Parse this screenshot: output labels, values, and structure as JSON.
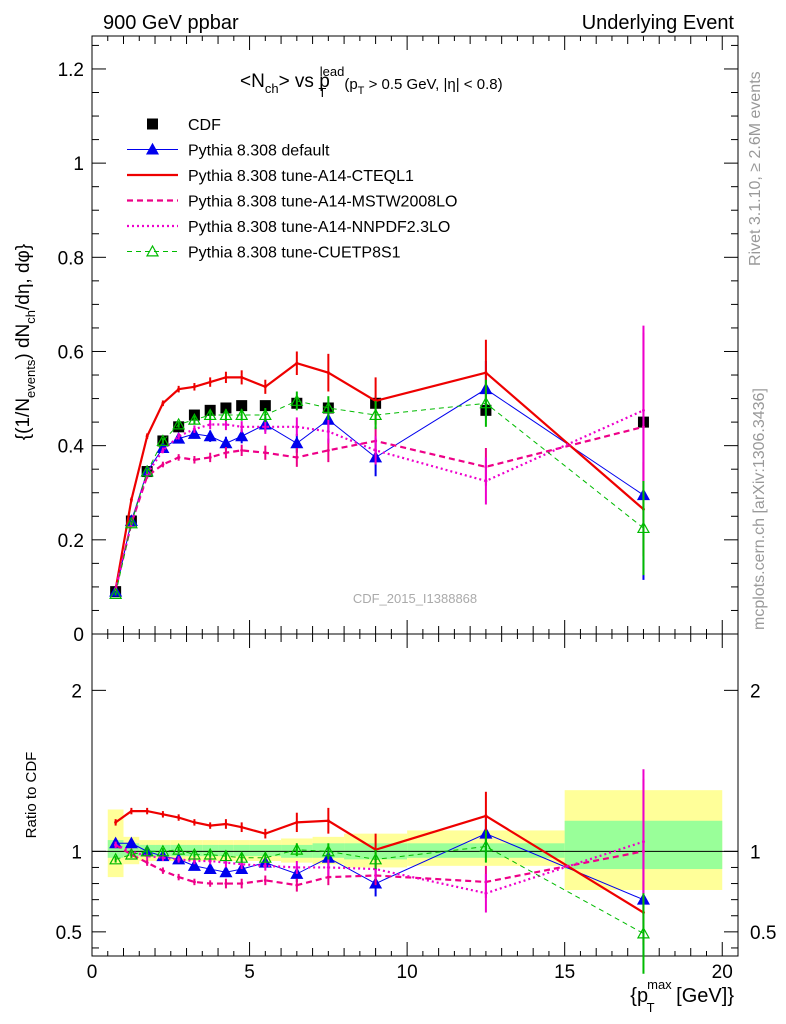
{
  "header": {
    "left": "900 GeV ppbar",
    "right": "Underlying Event"
  },
  "side_labels": {
    "rivet": "Rivet 3.1.10, ≥ 2.6M events",
    "mcplots": "mcplots.cern.ch [arXiv:1306.3436]"
  },
  "watermark": "CDF_2015_I1388868",
  "colors": {
    "cdf": "#000000",
    "default": "#0000ee",
    "cteql1": "#ee0000",
    "mstw": "#ee0088",
    "nnpdf": "#ee00cc",
    "cuetp": "#00bb00",
    "band_inner": "#99ff99",
    "band_outer": "#ffff99"
  },
  "chart_data": [
    {
      "type": "scatter",
      "panel": "main",
      "title": "<N_ch> vs p_T^lead (p_T > 0.5 GeV, |η| < 0.8)",
      "ylabel": "{(1/N_events) dN_ch/dη, dφ}",
      "ylim": [
        0,
        1.27
      ],
      "yticks": [
        "0",
        "0.2",
        "0.4",
        "0.6",
        "0.8",
        "1",
        "1.2"
      ],
      "xlim": [
        0,
        20.5
      ],
      "legend_position": "top-left",
      "x": [
        0.75,
        1.25,
        1.75,
        2.25,
        2.75,
        3.25,
        3.75,
        4.25,
        4.75,
        5.5,
        6.5,
        7.5,
        9.0,
        12.5,
        17.5
      ],
      "series": [
        {
          "name": "CDF",
          "style": "data",
          "values": [
            0.09,
            0.24,
            0.345,
            0.41,
            0.44,
            0.465,
            0.475,
            0.48,
            0.485,
            0.485,
            0.49,
            0.48,
            0.49,
            0.475,
            0.45
          ],
          "errors": [
            0.005,
            0.005,
            0.005,
            0.005,
            0.005,
            0.005,
            0.005,
            0.005,
            0.005,
            0.008,
            0.01,
            0.01,
            0.015,
            0.02,
            0.025
          ]
        },
        {
          "name": "Pythia 8.308 default",
          "style": "default",
          "values": [
            0.09,
            0.24,
            0.345,
            0.395,
            0.415,
            0.425,
            0.42,
            0.405,
            0.42,
            0.445,
            0.405,
            0.455,
            0.375,
            0.52,
            0.295
          ],
          "errors": [
            0.003,
            0.005,
            0.005,
            0.006,
            0.008,
            0.01,
            0.012,
            0.014,
            0.015,
            0.015,
            0.02,
            0.025,
            0.04,
            0.06,
            0.18
          ]
        },
        {
          "name": "Pythia 8.308 tune-A14-CTEQL1",
          "style": "cteql1",
          "values": [
            0.095,
            0.285,
            0.42,
            0.49,
            0.52,
            0.525,
            0.535,
            0.545,
            0.545,
            0.525,
            0.575,
            0.555,
            0.495,
            0.555,
            0.265
          ],
          "errors": [
            0.003,
            0.005,
            0.006,
            0.006,
            0.007,
            0.008,
            0.01,
            0.012,
            0.015,
            0.015,
            0.025,
            0.04,
            0.05,
            0.07,
            0.1
          ]
        },
        {
          "name": "Pythia 8.308 tune-A14-MSTW2008LO",
          "style": "mstw",
          "values": [
            0.095,
            0.235,
            0.335,
            0.36,
            0.375,
            0.37,
            0.375,
            0.385,
            0.39,
            0.385,
            0.375,
            0.39,
            0.41,
            0.355,
            0.44
          ],
          "errors": [
            0.003,
            0.004,
            0.005,
            0.006,
            0.007,
            0.008,
            0.01,
            0.012,
            0.012,
            0.015,
            0.02,
            0.025,
            0.03,
            0.04,
            0.2
          ]
        },
        {
          "name": "Pythia 8.308 tune-A14-NNPDF2.3LO",
          "style": "nnpdf",
          "values": [
            0.095,
            0.235,
            0.34,
            0.39,
            0.42,
            0.435,
            0.445,
            0.445,
            0.44,
            0.44,
            0.44,
            0.43,
            0.39,
            0.325,
            0.475
          ],
          "errors": [
            0.003,
            0.004,
            0.005,
            0.006,
            0.007,
            0.008,
            0.01,
            0.012,
            0.012,
            0.015,
            0.02,
            0.025,
            0.03,
            0.05,
            0.18
          ]
        },
        {
          "name": "Pythia 8.308 tune-CUETP8S1",
          "style": "cuetp",
          "values": [
            0.085,
            0.235,
            0.345,
            0.41,
            0.445,
            0.455,
            0.465,
            0.465,
            0.465,
            0.465,
            0.495,
            0.48,
            0.465,
            0.49,
            0.225
          ],
          "errors": [
            0.003,
            0.004,
            0.005,
            0.006,
            0.007,
            0.008,
            0.01,
            0.012,
            0.012,
            0.015,
            0.02,
            0.025,
            0.03,
            0.05,
            0.1
          ]
        }
      ]
    },
    {
      "type": "scatter",
      "panel": "ratio",
      "ylabel": "Ratio to CDF",
      "ylim": [
        0.35,
        2.35
      ],
      "yticks": [
        "0.5",
        "1",
        "2"
      ],
      "xlim": [
        0,
        20.5
      ],
      "xticks": [
        "0",
        "5",
        "10",
        "15",
        "20"
      ],
      "xlabel": "{p_T^max [GeV]}",
      "band_edges": [
        0.5,
        1.0,
        1.5,
        2.0,
        2.5,
        3.0,
        3.5,
        4.0,
        4.5,
        5.0,
        6.0,
        7.0,
        8.0,
        10.0,
        15.0,
        20.0
      ],
      "band_inner": [
        [
          0.96,
          1.07
        ],
        [
          0.97,
          1.05
        ],
        [
          0.97,
          1.04
        ],
        [
          0.97,
          1.04
        ],
        [
          0.97,
          1.04
        ],
        [
          0.97,
          1.04
        ],
        [
          0.97,
          1.04
        ],
        [
          0.97,
          1.04
        ],
        [
          0.97,
          1.04
        ],
        [
          0.97,
          1.04
        ],
        [
          0.96,
          1.04
        ],
        [
          0.96,
          1.05
        ],
        [
          0.95,
          1.05
        ],
        [
          0.96,
          1.05
        ],
        [
          0.89,
          1.19
        ]
      ],
      "band_outer": [
        [
          0.84,
          1.26
        ],
        [
          0.92,
          1.09
        ],
        [
          0.94,
          1.07
        ],
        [
          0.94,
          1.07
        ],
        [
          0.94,
          1.07
        ],
        [
          0.94,
          1.07
        ],
        [
          0.94,
          1.07
        ],
        [
          0.94,
          1.07
        ],
        [
          0.94,
          1.07
        ],
        [
          0.94,
          1.07
        ],
        [
          0.93,
          1.08
        ],
        [
          0.92,
          1.09
        ],
        [
          0.9,
          1.11
        ],
        [
          0.91,
          1.13
        ],
        [
          0.76,
          1.38
        ]
      ],
      "x": [
        0.75,
        1.25,
        1.75,
        2.25,
        2.75,
        3.25,
        3.75,
        4.25,
        4.75,
        5.5,
        6.5,
        7.5,
        9.0,
        12.5,
        17.5
      ],
      "series": [
        {
          "name": "Pythia 8.308 default",
          "style": "default",
          "values": [
            1.05,
            1.05,
            1.0,
            0.97,
            0.95,
            0.91,
            0.89,
            0.87,
            0.89,
            0.93,
            0.86,
            0.96,
            0.8,
            1.11,
            0.7
          ],
          "errors": [
            0.02,
            0.02,
            0.02,
            0.02,
            0.02,
            0.02,
            0.02,
            0.03,
            0.03,
            0.03,
            0.05,
            0.06,
            0.08,
            0.12,
            0.35
          ]
        },
        {
          "name": "Pythia 8.308 tune-A14-CTEQL1",
          "style": "cteql1",
          "values": [
            1.18,
            1.25,
            1.25,
            1.23,
            1.21,
            1.18,
            1.16,
            1.17,
            1.15,
            1.11,
            1.18,
            1.19,
            1.01,
            1.22,
            0.62
          ],
          "errors": [
            0.02,
            0.02,
            0.02,
            0.02,
            0.02,
            0.02,
            0.02,
            0.03,
            0.03,
            0.03,
            0.06,
            0.08,
            0.1,
            0.15,
            0.2
          ]
        },
        {
          "name": "Pythia 8.308 tune-A14-MSTW2008LO",
          "style": "mstw",
          "values": [
            1.04,
            0.98,
            0.93,
            0.88,
            0.84,
            0.81,
            0.8,
            0.8,
            0.8,
            0.82,
            0.79,
            0.84,
            0.85,
            0.81,
            1.0
          ],
          "errors": [
            0.02,
            0.02,
            0.02,
            0.02,
            0.02,
            0.02,
            0.02,
            0.03,
            0.03,
            0.03,
            0.04,
            0.05,
            0.06,
            0.1,
            0.45
          ]
        },
        {
          "name": "Pythia 8.308 tune-A14-NNPDF2.3LO",
          "style": "nnpdf",
          "values": [
            1.04,
            1.0,
            0.97,
            0.96,
            0.95,
            0.94,
            0.94,
            0.93,
            0.92,
            0.91,
            0.9,
            0.9,
            0.89,
            0.74,
            1.06
          ],
          "errors": [
            0.02,
            0.02,
            0.02,
            0.02,
            0.02,
            0.02,
            0.02,
            0.03,
            0.03,
            0.03,
            0.04,
            0.05,
            0.06,
            0.12,
            0.45
          ]
        },
        {
          "name": "Pythia 8.308 tune-CUETP8S1",
          "style": "cuetp",
          "values": [
            0.95,
            0.98,
            1.0,
            1.0,
            1.01,
            0.98,
            0.98,
            0.97,
            0.96,
            0.96,
            1.01,
            1.0,
            0.95,
            1.03,
            0.49
          ],
          "errors": [
            0.02,
            0.02,
            0.02,
            0.02,
            0.02,
            0.02,
            0.02,
            0.03,
            0.03,
            0.03,
            0.04,
            0.05,
            0.06,
            0.1,
            0.25
          ]
        }
      ]
    }
  ]
}
